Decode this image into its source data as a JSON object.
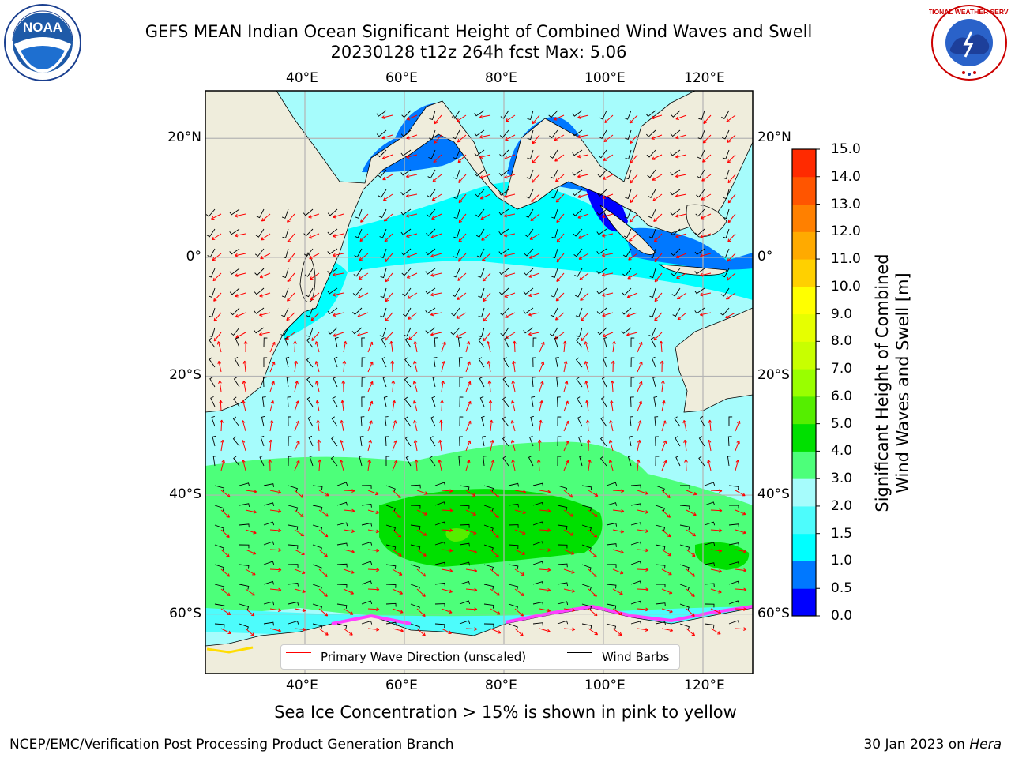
{
  "header": {
    "title_line1": "GEFS MEAN Indian Ocean Significant Height of Combined Wind Waves and Swell",
    "title_line2": "20230128 t12z 264h fcst   Max: 5.06"
  },
  "logos": {
    "noaa": {
      "text": "NOAA",
      "icon": "noaa-logo-icon"
    },
    "nws": {
      "text": "NATIONAL WEATHER SERVICE",
      "icon": "nws-logo-icon"
    }
  },
  "map": {
    "lon_ticks_top": [
      "40°E",
      "60°E",
      "80°E",
      "100°E",
      "120°E"
    ],
    "lon_ticks_bottom": [
      "40°E",
      "60°E",
      "80°E",
      "100°E",
      "120°E"
    ],
    "lat_ticks_left": [
      "20°N",
      "0°",
      "20°S",
      "40°S",
      "60°S"
    ],
    "lat_ticks_right": [
      "20°N",
      "0°",
      "20°S",
      "40°S",
      "60°S"
    ],
    "lon_values": [
      40,
      60,
      80,
      100,
      120
    ],
    "lat_values": [
      20,
      0,
      -20,
      -40,
      -60
    ],
    "extent": {
      "lon": [
        20,
        130
      ],
      "lat": [
        -70,
        28
      ]
    },
    "colors": {
      "land": "#efeddc",
      "grid": "#b4b4b4",
      "wave_arrow": "#ff0000",
      "wind_barb": "#000000",
      "sea_ice": "#ff40ff"
    }
  },
  "colorbar": {
    "label_line1": "Significant Height of Combined",
    "label_line2": "Wind Waves and Swell [m]",
    "ticks": [
      "15.0",
      "14.0",
      "13.0",
      "12.0",
      "11.0",
      "10.0",
      "9.0",
      "8.0",
      "7.0",
      "6.0",
      "5.0",
      "4.0",
      "3.0",
      "2.0",
      "1.5",
      "1.0",
      "0.5",
      "0.0"
    ],
    "colors": [
      "#0000ff",
      "#0078ff",
      "#00ffff",
      "#4dfcfc",
      "#a6fcfc",
      "#4dff7a",
      "#00e000",
      "#55ee00",
      "#99ff00",
      "#c8ff00",
      "#e6ff00",
      "#ffff00",
      "#ffd000",
      "#ffaa00",
      "#ff8000",
      "#ff5500",
      "#ff2a00"
    ]
  },
  "legend": {
    "wave_label": "Primary Wave Direction (unscaled)",
    "wind_label": "Wind Barbs"
  },
  "caption": "Sea Ice Concentration > 15% is shown in pink to yellow",
  "footer": {
    "left": "NCEP/EMC/Verification Post Processing Product Generation Branch",
    "date": "30 Jan 2023 on ",
    "host": "Hera"
  }
}
